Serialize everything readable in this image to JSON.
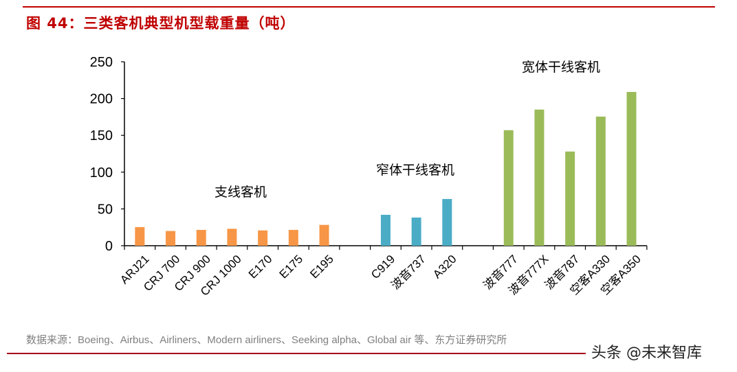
{
  "title": "图 44：三类客机典型机型载重量（吨）",
  "source": "数据来源：Boeing、Airbus、Airliners、Modern airliners、Seeking alpha、Global air 等、东方证券研究所",
  "watermark": "头条 @未来智库",
  "chart_data": {
    "type": "bar",
    "title": "图 44：三类客机典型机型载重量（吨）",
    "ylim": [
      0,
      250
    ],
    "yticks": [
      0,
      50,
      100,
      150,
      200,
      250
    ],
    "grid": false,
    "groups": [
      {
        "label": "支线客机",
        "color": "#f79646",
        "categories": [
          "ARJ21",
          "CRJ 700",
          "CRJ 900",
          "CRJ 1000",
          "E170",
          "E175",
          "E195"
        ],
        "values": [
          25.3,
          20,
          21.5,
          23,
          20.8,
          21.5,
          28.3
        ]
      },
      {
        "label": "窄体干线客机",
        "color": "#4bacc6",
        "categories": [
          "C919",
          "波音737",
          "A320"
        ],
        "values": [
          42,
          38.3,
          63.5
        ]
      },
      {
        "label": "宽体干线客机",
        "color": "#9bbb59",
        "categories": [
          "波音777",
          "波音777X",
          "波音787",
          "空客A330",
          "空客A350"
        ],
        "values": [
          157,
          185,
          128,
          175.5,
          209
        ]
      }
    ]
  }
}
